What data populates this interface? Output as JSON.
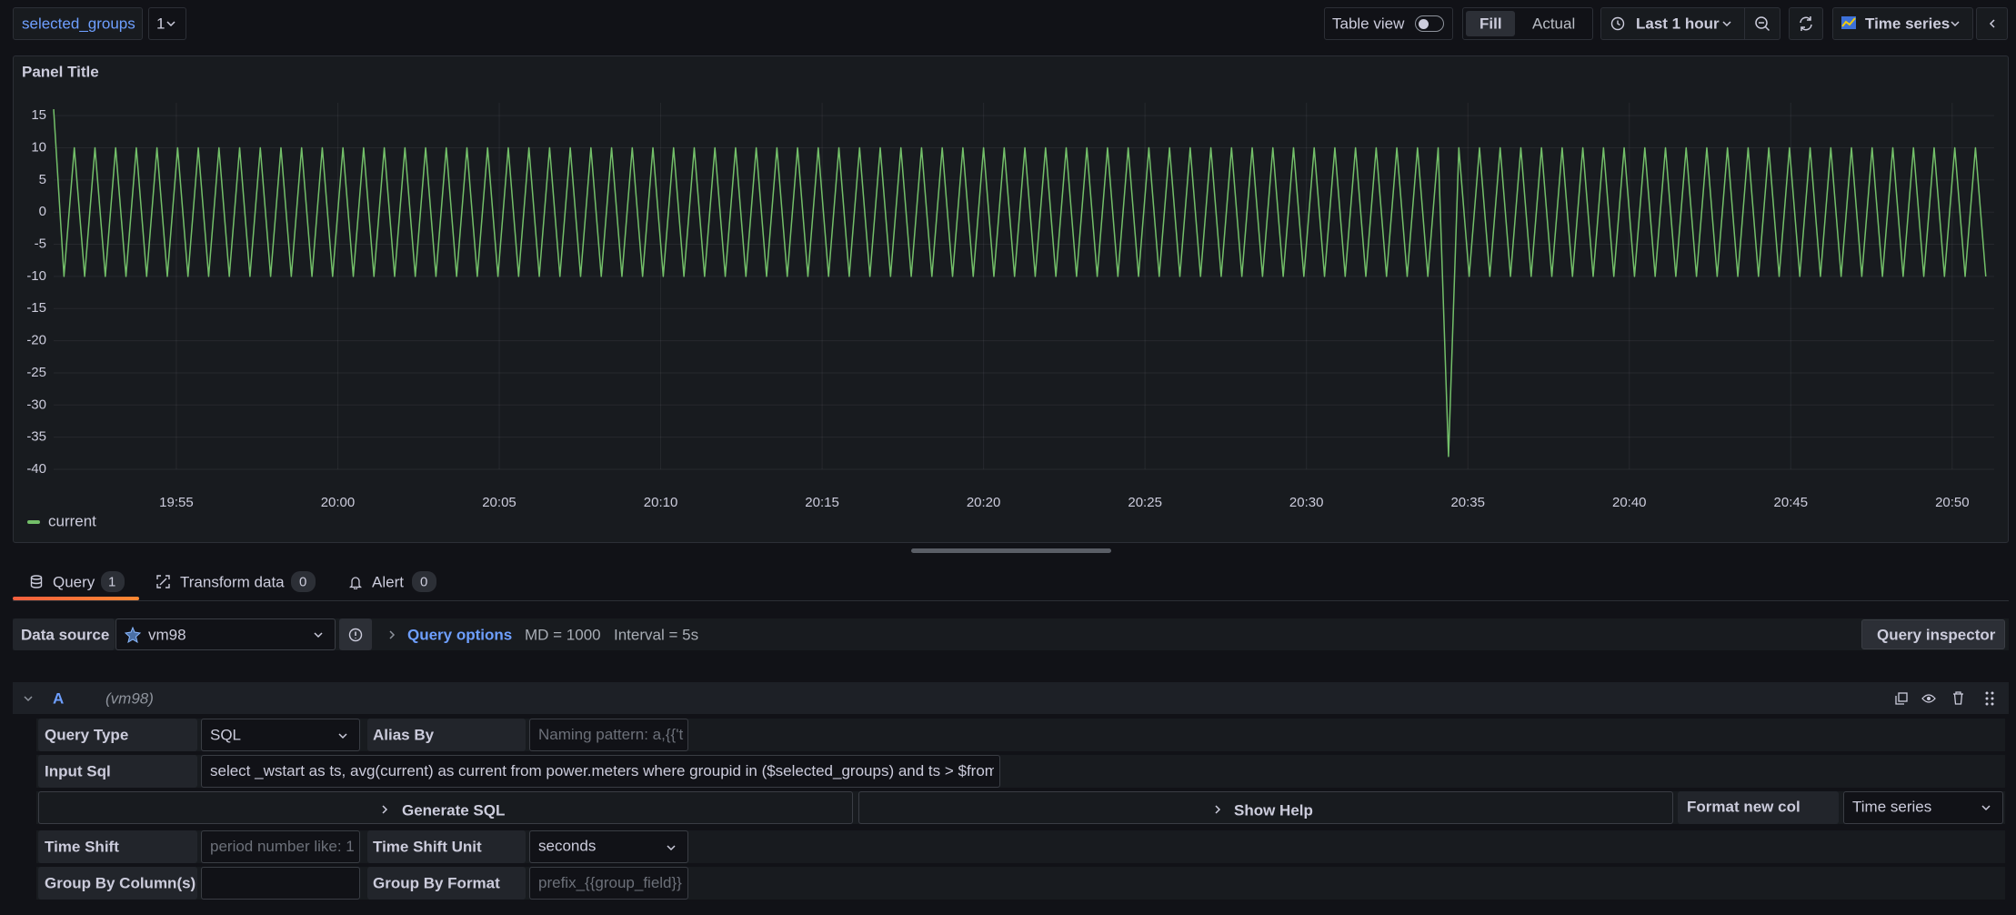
{
  "toolbar": {
    "variable_name": "selected_groups",
    "variable_value": "1",
    "table_view": "Table view",
    "fill": "Fill",
    "actual": "Actual",
    "time_range": "Last 1 hour",
    "visualization": "Time series"
  },
  "chart_data": {
    "type": "line",
    "title": "Panel Title",
    "x": [
      1191.2,
      1191.52,
      1191.84,
      1192.16,
      1192.48,
      1192.8,
      1193.12,
      1193.44,
      1193.76,
      1194.08,
      1194.4,
      1194.72,
      1195.04,
      1195.36,
      1195.68,
      1196,
      1196.32,
      1196.64,
      1196.96,
      1197.28,
      1197.6,
      1197.92,
      1198.24,
      1198.56,
      1198.88,
      1199.2,
      1199.52,
      1199.84,
      1200.16,
      1200.48,
      1200.8,
      1201.12,
      1201.44,
      1201.76,
      1202.08,
      1202.4,
      1202.72,
      1203.04,
      1203.36,
      1203.68,
      1204,
      1204.32,
      1204.64,
      1204.96,
      1205.28,
      1205.6,
      1205.92,
      1206.24,
      1206.56,
      1206.88,
      1207.2,
      1207.52,
      1207.84,
      1208.16,
      1208.48,
      1208.8,
      1209.12,
      1209.44,
      1209.76,
      1210.08,
      1210.4,
      1210.72,
      1211.04,
      1211.36,
      1211.68,
      1212,
      1212.32,
      1212.64,
      1212.96,
      1213.28,
      1213.6,
      1213.92,
      1214.24,
      1214.56,
      1214.88,
      1215.2,
      1215.52,
      1215.84,
      1216.16,
      1216.48,
      1216.8,
      1217.12,
      1217.44,
      1217.76,
      1218.08,
      1218.4,
      1218.72,
      1219.04,
      1219.36,
      1219.68,
      1220,
      1220.32,
      1220.64,
      1220.96,
      1221.28,
      1221.6,
      1221.92,
      1222.24,
      1222.56,
      1222.88,
      1223.2,
      1223.52,
      1223.84,
      1224.16,
      1224.48,
      1224.8,
      1225.12,
      1225.44,
      1225.76,
      1226.08,
      1226.4,
      1226.72,
      1227.04,
      1227.36,
      1227.68,
      1228,
      1228.32,
      1228.64,
      1228.96,
      1229.28,
      1229.6,
      1229.92,
      1230.24,
      1230.56,
      1230.88,
      1231.2,
      1231.52,
      1231.84,
      1232.16,
      1232.48,
      1232.8,
      1233.12,
      1233.44,
      1233.76,
      1234.08,
      1234.4,
      1234.72,
      1235.04,
      1235.36,
      1235.68,
      1236,
      1236.32,
      1236.64,
      1236.96,
      1237.28,
      1237.6,
      1237.92,
      1238.24,
      1238.56,
      1238.88,
      1239.2,
      1239.52,
      1239.84,
      1240.16,
      1240.48,
      1240.8,
      1241.12,
      1241.44,
      1241.76,
      1242.08,
      1242.4,
      1242.72,
      1243.04,
      1243.36,
      1243.68,
      1244,
      1244.32,
      1244.64,
      1244.96,
      1245.28,
      1245.6,
      1245.92,
      1246.24,
      1246.56,
      1246.88,
      1247.2,
      1247.52,
      1247.84,
      1248.16,
      1248.48,
      1248.8,
      1249.12,
      1249.44,
      1249.76,
      1250.08,
      1250.4,
      1250.72,
      1251.04
    ],
    "series": [
      {
        "name": "current",
        "color": "#73bf69",
        "values": [
          16,
          -10,
          10,
          -10,
          10,
          -10,
          10,
          -10,
          10,
          -10,
          10,
          -10,
          10,
          -10,
          10,
          -10,
          10,
          -10,
          10,
          -10,
          10,
          -10,
          10,
          -10,
          10,
          -10,
          10,
          -10,
          10,
          -10,
          10,
          -10,
          10,
          -10,
          10,
          -10,
          10,
          -10,
          10,
          -10,
          10,
          -10,
          10,
          -10,
          10,
          -10,
          10,
          -10,
          10,
          -10,
          10,
          -10,
          10,
          -10,
          10,
          -10,
          10,
          -10,
          10,
          -10,
          10,
          -10,
          10,
          -10,
          10,
          -10,
          10,
          -10,
          10,
          -10,
          10,
          -10,
          10,
          -10,
          10,
          -10,
          10,
          -10,
          10,
          -10,
          10,
          -10,
          10,
          -10,
          10,
          -10,
          10,
          -10,
          10,
          -10,
          10,
          -10,
          10,
          -10,
          10,
          -10,
          10,
          -10,
          10,
          -10,
          10,
          -10,
          10,
          -10,
          10,
          -10,
          10,
          -10,
          10,
          -10,
          10,
          -10,
          10,
          -10,
          10,
          -10,
          10,
          -10,
          10,
          -10,
          10,
          -10,
          10,
          -10,
          10,
          -10,
          10,
          -10,
          10,
          -10,
          10,
          -10,
          10,
          -10,
          10,
          -38,
          10,
          -10,
          10,
          -10,
          10,
          -10,
          10,
          -10,
          10,
          -10,
          10,
          -10,
          10,
          -10,
          10,
          -10,
          10,
          -10,
          10,
          -10,
          10,
          -10,
          10,
          -10,
          10,
          -10,
          10,
          -10,
          10,
          -10,
          10,
          -10,
          10,
          -10,
          10,
          -10,
          10,
          -10,
          10,
          -10,
          10,
          -10,
          10,
          -10,
          10,
          -10,
          10,
          -10,
          10,
          -10,
          10,
          -10
        ]
      }
    ],
    "xlim": [
      1191.2,
      1251.3
    ],
    "xticks": [
      {
        "value": 1195,
        "label": "19:55"
      },
      {
        "value": 1200,
        "label": "20:00"
      },
      {
        "value": 1205,
        "label": "20:05"
      },
      {
        "value": 1210,
        "label": "20:10"
      },
      {
        "value": 1215,
        "label": "20:15"
      },
      {
        "value": 1220,
        "label": "20:20"
      },
      {
        "value": 1225,
        "label": "20:25"
      },
      {
        "value": 1230,
        "label": "20:30"
      },
      {
        "value": 1235,
        "label": "20:35"
      },
      {
        "value": 1240,
        "label": "20:40"
      },
      {
        "value": 1245,
        "label": "20:45"
      },
      {
        "value": 1250,
        "label": "20:50"
      }
    ],
    "ylim": [
      -40,
      17
    ],
    "yticks": [
      15,
      10,
      5,
      0,
      -5,
      -10,
      -15,
      -20,
      -25,
      -30,
      -35,
      -40
    ],
    "grid": true
  },
  "tabs": [
    {
      "label": "Query",
      "count": 1
    },
    {
      "label": "Transform data",
      "count": 0
    },
    {
      "label": "Alert",
      "count": 0
    }
  ],
  "data_source": {
    "label": "Data source",
    "name": "vm98",
    "query_options": "Query options",
    "max_data_points": "MD = 1000",
    "interval": "Interval = 5s",
    "inspector": "Query inspector"
  },
  "query": {
    "ref_id": "A",
    "datasource": "(vm98)",
    "query_type_label": "Query Type",
    "query_type": "SQL",
    "alias_label": "Alias By",
    "alias_placeholder": "Naming pattern: a,{{'t",
    "input_sql_label": "Input Sql",
    "input_sql": "select _wstart as ts, avg(current) as current from power.meters where groupid in ($selected_groups) and ts > $from ar",
    "generate_sql": "Generate SQL",
    "show_help": "Show Help",
    "format_label": "Format new col",
    "format": "Time series",
    "time_shift_label": "Time Shift",
    "time_shift_placeholder": "period number like: 1",
    "time_shift_unit_label": "Time Shift Unit",
    "time_shift_unit": "seconds",
    "group_by_label": "Group By Column(s)",
    "group_by_format_label": "Group By Format",
    "group_by_format_placeholder": "prefix_{{group_field}}"
  }
}
